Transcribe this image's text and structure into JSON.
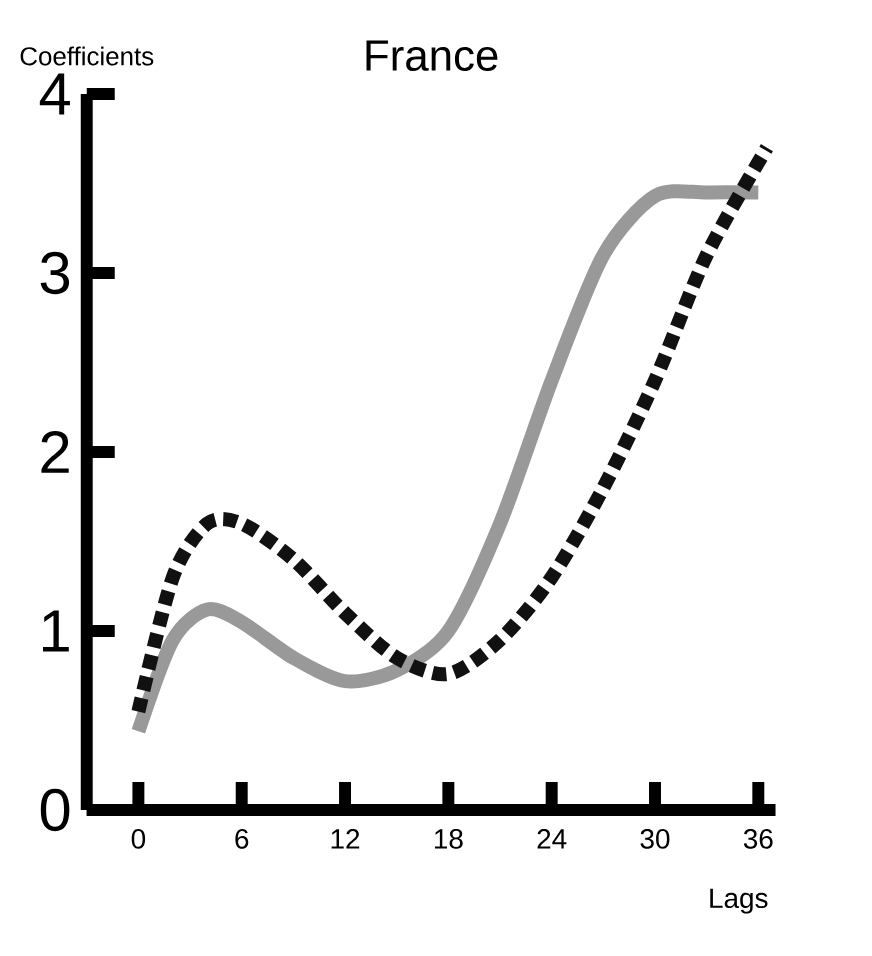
{
  "chart_data": {
    "type": "line",
    "title": "France",
    "xlabel": "Lags",
    "ylabel": "Coefficients",
    "xlim": [
      -3,
      37
    ],
    "ylim": [
      0,
      4
    ],
    "xticks": [
      0,
      6,
      12,
      18,
      24,
      30,
      36
    ],
    "yticks": [
      0,
      1,
      2,
      3,
      4
    ],
    "grid": false,
    "series": [
      {
        "color": "#999999",
        "line_style": "solid",
        "x": [
          0,
          2,
          4,
          6,
          9,
          12,
          15,
          18,
          21,
          24,
          27,
          30,
          33,
          36
        ],
        "values": [
          0.44,
          0.95,
          1.12,
          1.05,
          0.85,
          0.72,
          0.78,
          1.0,
          1.6,
          2.4,
          3.1,
          3.43,
          3.45,
          3.45
        ]
      },
      {
        "color": "#111111",
        "line_style": "dashed",
        "x": [
          0,
          2,
          4,
          6,
          9,
          12,
          15,
          18,
          21,
          24,
          27,
          30,
          33,
          36.5
        ],
        "values": [
          0.55,
          1.3,
          1.6,
          1.6,
          1.4,
          1.1,
          0.85,
          0.76,
          0.95,
          1.3,
          1.8,
          2.4,
          3.1,
          3.7
        ]
      }
    ]
  }
}
